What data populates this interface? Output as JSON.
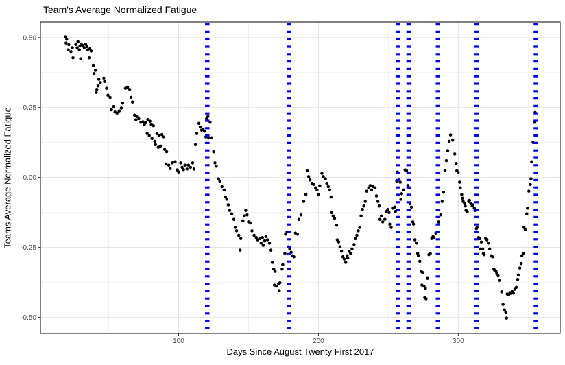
{
  "chart": {
    "title": "Team's Average Normalized Fatigue",
    "xlabel": "Days Since August Twenty First 2017",
    "ylabel": "Teams Average Normalized Fatigue"
  },
  "colors": {
    "point": "#000000",
    "vline": "#0000EE",
    "grid_major": "#E4E4E4",
    "grid_minor": "#F1F1F1",
    "panel_border": "#2F2F2F",
    "tick_text": "#4D4D4D",
    "background": "#FFFFFF"
  },
  "chart_data": {
    "type": "scatter",
    "title": "Team's Average Normalized Fatigue",
    "xlabel": "Days Since August Twenty First 2017",
    "ylabel": "Teams Average Normalized Fatigue",
    "xlim": [
      1.2,
      372.9
    ],
    "ylim": [
      -0.558,
      0.556
    ],
    "x_ticks": [
      100,
      200,
      300
    ],
    "x_tick_labels": [
      "100",
      "200",
      "300"
    ],
    "x_minor_ticks": [
      50,
      150,
      250,
      350
    ],
    "y_ticks": [
      0.5,
      0.25,
      0.0,
      -0.25,
      -0.5
    ],
    "y_tick_labels": [
      "0.50",
      "0.25",
      "0.00",
      "-0.25",
      "-0.50"
    ],
    "y_minor_ticks": [
      0.375,
      0.125,
      -0.125,
      -0.375
    ],
    "grid": true,
    "legend": false,
    "vline_days": [
      120.5,
      179,
      257,
      264.5,
      285.5,
      313,
      355.5
    ],
    "vline_style": "dotted",
    "points": [
      [
        19,
        0.503
      ],
      [
        19.5,
        0.481
      ],
      [
        20,
        0.494
      ],
      [
        21,
        0.456
      ],
      [
        21.5,
        0.475
      ],
      [
        23,
        0.45
      ],
      [
        24,
        0.464
      ],
      [
        24.5,
        0.428
      ],
      [
        26.5,
        0.476
      ],
      [
        27.5,
        0.464
      ],
      [
        28,
        0.485
      ],
      [
        29,
        0.456
      ],
      [
        29.5,
        0.47
      ],
      [
        30,
        0.424
      ],
      [
        30.5,
        0.476
      ],
      [
        31.5,
        0.472
      ],
      [
        32.5,
        0.464
      ],
      [
        33.5,
        0.476
      ],
      [
        34.5,
        0.468
      ],
      [
        35,
        0.456
      ],
      [
        36,
        0.428
      ],
      [
        36.5,
        0.46
      ],
      [
        37.5,
        0.452
      ],
      [
        39,
        0.4
      ],
      [
        39.5,
        0.371
      ],
      [
        40.5,
        0.383
      ],
      [
        41,
        0.304
      ],
      [
        41.5,
        0.315
      ],
      [
        42.5,
        0.327
      ],
      [
        43,
        0.351
      ],
      [
        44,
        0.339
      ],
      [
        46.5,
        0.355
      ],
      [
        47,
        0.343
      ],
      [
        48.5,
        0.319
      ],
      [
        49.5,
        0.294
      ],
      [
        51,
        0.286
      ],
      [
        52,
        0.242
      ],
      [
        53.5,
        0.254
      ],
      [
        54.5,
        0.234
      ],
      [
        56,
        0.23
      ],
      [
        57.5,
        0.238
      ],
      [
        59,
        0.248
      ],
      [
        60,
        0.266
      ],
      [
        62,
        0.319
      ],
      [
        63.5,
        0.323
      ],
      [
        65,
        0.315
      ],
      [
        66,
        0.286
      ],
      [
        67,
        0.27
      ],
      [
        68.5,
        0.223
      ],
      [
        69.5,
        0.206
      ],
      [
        70,
        0.218
      ],
      [
        71.5,
        0.21
      ],
      [
        73,
        0.197
      ],
      [
        74.5,
        0.199
      ],
      [
        75.5,
        0.189
      ],
      [
        76.5,
        0.196
      ],
      [
        77.5,
        0.157
      ],
      [
        78,
        0.207
      ],
      [
        79,
        0.149
      ],
      [
        79.5,
        0.201
      ],
      [
        80.5,
        0.189
      ],
      [
        81,
        0.139
      ],
      [
        82,
        0.185
      ],
      [
        83,
        0.129
      ],
      [
        83.5,
        0.117
      ],
      [
        84.5,
        0.157
      ],
      [
        85.5,
        0.108
      ],
      [
        86,
        0.149
      ],
      [
        87,
        0.112
      ],
      [
        88,
        0.153
      ],
      [
        89,
        0.145
      ],
      [
        90,
        0.1
      ],
      [
        91.5,
        0.092
      ],
      [
        91,
        0.048
      ],
      [
        93,
        0.044
      ],
      [
        94,
        0.032
      ],
      [
        95.5,
        0.052
      ],
      [
        97.5,
        0.056
      ],
      [
        99,
        0.027
      ],
      [
        100,
        0.019
      ],
      [
        101.5,
        0.052
      ],
      [
        102.5,
        0.036
      ],
      [
        103.5,
        0.028
      ],
      [
        104.5,
        0.044
      ],
      [
        106,
        0.03
      ],
      [
        107,
        0.044
      ],
      [
        108.5,
        0.036
      ],
      [
        110,
        0.052
      ],
      [
        111,
        0.03
      ],
      [
        112,
        0.117
      ],
      [
        113,
        0.157
      ],
      [
        114.5,
        0.193
      ],
      [
        115.5,
        0.18
      ],
      [
        116.5,
        0.169
      ],
      [
        117.5,
        0.173
      ],
      [
        118.5,
        0.165
      ],
      [
        119.5,
        0.145
      ],
      [
        120,
        0.21
      ],
      [
        121,
        0.218
      ],
      [
        121.5,
        0.141
      ],
      [
        122.5,
        0.197
      ],
      [
        123.5,
        0.142
      ],
      [
        125,
        0.092
      ],
      [
        126,
        0.052
      ],
      [
        127,
        0.04
      ],
      [
        128.5,
        -0.005
      ],
      [
        129.5,
        -0.013
      ],
      [
        131,
        -0.033
      ],
      [
        132.5,
        -0.045
      ],
      [
        133.5,
        -0.07
      ],
      [
        134.5,
        -0.078
      ],
      [
        135.5,
        -0.098
      ],
      [
        136.5,
        -0.118
      ],
      [
        138,
        -0.13
      ],
      [
        139.5,
        -0.15
      ],
      [
        140.5,
        -0.179
      ],
      [
        141.5,
        -0.191
      ],
      [
        143,
        -0.207
      ],
      [
        144,
        -0.26
      ],
      [
        144.5,
        -0.219
      ],
      [
        146,
        -0.155
      ],
      [
        147,
        -0.138
      ],
      [
        148,
        -0.118
      ],
      [
        149,
        -0.134
      ],
      [
        150,
        -0.159
      ],
      [
        151.5,
        -0.163
      ],
      [
        152.5,
        -0.191
      ],
      [
        154,
        -0.207
      ],
      [
        155.5,
        -0.215
      ],
      [
        156.5,
        -0.223
      ],
      [
        158,
        -0.219
      ],
      [
        159,
        -0.235
      ],
      [
        160,
        -0.215
      ],
      [
        160.5,
        -0.243
      ],
      [
        161.5,
        -0.227
      ],
      [
        162.5,
        -0.211
      ],
      [
        163.5,
        -0.223
      ],
      [
        165,
        -0.235
      ],
      [
        166,
        -0.26
      ],
      [
        167,
        -0.304
      ],
      [
        168,
        -0.328
      ],
      [
        168.5,
        -0.385
      ],
      [
        169,
        -0.336
      ],
      [
        170,
        -0.389
      ],
      [
        171.5,
        -0.381
      ],
      [
        172,
        -0.405
      ],
      [
        172.5,
        -0.377
      ],
      [
        174,
        -0.328
      ],
      [
        174.5,
        -0.312
      ],
      [
        176,
        -0.272
      ],
      [
        176.5,
        -0.203
      ],
      [
        177.5,
        -0.195
      ],
      [
        178.5,
        -0.248
      ],
      [
        179.5,
        -0.256
      ],
      [
        180.5,
        -0.268
      ],
      [
        181.5,
        -0.28
      ],
      [
        182.5,
        -0.284
      ],
      [
        183.5,
        -0.199
      ],
      [
        185,
        -0.203
      ],
      [
        186,
        -0.15
      ],
      [
        187.5,
        -0.134
      ],
      [
        189.5,
        -0.086
      ],
      [
        191,
        -0.061
      ],
      [
        192,
        0.024
      ],
      [
        193,
        0.003
      ],
      [
        194,
        -0.009
      ],
      [
        195.5,
        -0.021
      ],
      [
        196.5,
        -0.025
      ],
      [
        198,
        -0.037
      ],
      [
        199,
        -0.045
      ],
      [
        200,
        -0.061
      ],
      [
        201,
        -0.03
      ],
      [
        202.5,
        0.015
      ],
      [
        203.5,
        0.003
      ],
      [
        205,
        -0.005
      ],
      [
        206,
        -0.021
      ],
      [
        207,
        -0.033
      ],
      [
        208,
        -0.045
      ],
      [
        209,
        -0.07
      ],
      [
        209.5,
        -0.126
      ],
      [
        210.5,
        -0.138
      ],
      [
        211.5,
        -0.146
      ],
      [
        213,
        -0.171
      ],
      [
        213.5,
        -0.223
      ],
      [
        214.5,
        -0.231
      ],
      [
        215.5,
        -0.248
      ],
      [
        216.5,
        -0.264
      ],
      [
        217.5,
        -0.284
      ],
      [
        218.5,
        -0.292
      ],
      [
        219.5,
        -0.304
      ],
      [
        220.5,
        -0.28
      ],
      [
        221,
        -0.288
      ],
      [
        222,
        -0.264
      ],
      [
        223,
        -0.272
      ],
      [
        224,
        -0.256
      ],
      [
        225.5,
        -0.24
      ],
      [
        226.5,
        -0.219
      ],
      [
        227.5,
        -0.207
      ],
      [
        228.5,
        -0.191
      ],
      [
        229.5,
        -0.179
      ],
      [
        230.5,
        -0.138
      ],
      [
        231.5,
        -0.114
      ],
      [
        232.5,
        -0.102
      ],
      [
        233.5,
        -0.086
      ],
      [
        234.5,
        -0.049
      ],
      [
        236,
        -0.037
      ],
      [
        237,
        -0.029
      ],
      [
        238,
        -0.045
      ],
      [
        239,
        -0.033
      ],
      [
        240.5,
        -0.037
      ],
      [
        241.5,
        -0.066
      ],
      [
        242.5,
        -0.086
      ],
      [
        243.5,
        -0.102
      ],
      [
        244,
        -0.15
      ],
      [
        245,
        -0.138
      ],
      [
        246,
        -0.159
      ],
      [
        247.5,
        -0.15
      ],
      [
        248.5,
        -0.122
      ],
      [
        249.5,
        -0.114
      ],
      [
        250.5,
        -0.126
      ],
      [
        251,
        -0.167
      ],
      [
        252,
        -0.179
      ],
      [
        253,
        -0.11
      ],
      [
        254.5,
        -0.106
      ],
      [
        255,
        -0.122
      ],
      [
        256,
        -0.013
      ],
      [
        256.5,
        0.019
      ],
      [
        257.5,
        -0.009
      ],
      [
        258.5,
        -0.017
      ],
      [
        259,
        -0.078
      ],
      [
        259.5,
        -0.058
      ],
      [
        261,
        -0.045
      ],
      [
        262,
        0.027
      ],
      [
        263,
        0.024
      ],
      [
        264,
        -0.029
      ],
      [
        265,
        -0.037
      ],
      [
        265.5,
        -0.094
      ],
      [
        266.5,
        -0.106
      ],
      [
        267.5,
        -0.159
      ],
      [
        268,
        -0.167
      ],
      [
        269,
        -0.223
      ],
      [
        270,
        -0.235
      ],
      [
        271,
        -0.272
      ],
      [
        271.5,
        -0.28
      ],
      [
        272.5,
        -0.3
      ],
      [
        273.5,
        -0.336
      ],
      [
        274,
        -0.385
      ],
      [
        274.5,
        -0.34
      ],
      [
        275.5,
        -0.389
      ],
      [
        276,
        -0.43
      ],
      [
        276.5,
        -0.397
      ],
      [
        277,
        -0.434
      ],
      [
        278,
        -0.361
      ],
      [
        279,
        -0.276
      ],
      [
        280,
        -0.272
      ],
      [
        281,
        -0.219
      ],
      [
        282,
        -0.211
      ],
      [
        282.5,
        -0.215
      ],
      [
        284,
        -0.199
      ],
      [
        286,
        -0.159
      ],
      [
        287.5,
        -0.134
      ],
      [
        288.5,
        -0.086
      ],
      [
        289.5,
        -0.053
      ],
      [
        290.5,
        0.024
      ],
      [
        291.5,
        0.06
      ],
      [
        292.5,
        0.096
      ],
      [
        293.5,
        0.129
      ],
      [
        294.5,
        0.152
      ],
      [
        296,
        0.133
      ],
      [
        297.5,
        0.084
      ],
      [
        298.5,
        0.05
      ],
      [
        299,
        0.024
      ],
      [
        300,
        0.019
      ],
      [
        301,
        -0.017
      ],
      [
        301.5,
        -0.037
      ],
      [
        302.5,
        -0.061
      ],
      [
        303,
        -0.074
      ],
      [
        303.5,
        -0.086
      ],
      [
        304.5,
        -0.094
      ],
      [
        305,
        -0.102
      ],
      [
        305.5,
        -0.118
      ],
      [
        306.5,
        -0.122
      ],
      [
        307.5,
        -0.086
      ],
      [
        308,
        -0.082
      ],
      [
        309,
        -0.094
      ],
      [
        310,
        -0.102
      ],
      [
        310.5,
        -0.098
      ],
      [
        311.5,
        -0.11
      ],
      [
        312,
        -0.118
      ],
      [
        313,
        -0.183
      ],
      [
        313.5,
        -0.179
      ],
      [
        314.5,
        -0.215
      ],
      [
        315.5,
        -0.219
      ],
      [
        316,
        -0.256
      ],
      [
        316.5,
        -0.231
      ],
      [
        317.5,
        -0.256
      ],
      [
        318,
        -0.272
      ],
      [
        318.5,
        -0.276
      ],
      [
        319.5,
        -0.219
      ],
      [
        320.5,
        -0.223
      ],
      [
        321.5,
        -0.235
      ],
      [
        322.5,
        -0.256
      ],
      [
        323.5,
        -0.28
      ],
      [
        324.5,
        -0.284
      ],
      [
        325.5,
        -0.328
      ],
      [
        326,
        -0.332
      ],
      [
        327,
        -0.336
      ],
      [
        327.5,
        -0.344
      ],
      [
        328.5,
        -0.352
      ],
      [
        329.5,
        -0.368
      ],
      [
        331,
        -0.409
      ],
      [
        332,
        -0.454
      ],
      [
        333,
        -0.474
      ],
      [
        334,
        -0.482
      ],
      [
        334.5,
        -0.503
      ],
      [
        335,
        -0.417
      ],
      [
        336,
        -0.42
      ],
      [
        337,
        -0.412
      ],
      [
        337.5,
        -0.415
      ],
      [
        338.5,
        -0.408
      ],
      [
        339.5,
        -0.414
      ],
      [
        340.5,
        -0.4
      ],
      [
        341.5,
        -0.393
      ],
      [
        342.5,
        -0.365
      ],
      [
        343,
        -0.349
      ],
      [
        344,
        -0.324
      ],
      [
        345,
        -0.308
      ],
      [
        345.5,
        -0.28
      ],
      [
        346.5,
        -0.272
      ],
      [
        347,
        -0.179
      ],
      [
        348,
        -0.187
      ],
      [
        349,
        -0.13
      ],
      [
        349.5,
        -0.11
      ],
      [
        350.5,
        -0.049
      ],
      [
        351.5,
        -0.025
      ],
      [
        352,
        -0.005
      ],
      [
        352.5,
        0.056
      ],
      [
        353.5,
        0.125
      ],
      [
        354.5,
        0.197
      ],
      [
        355,
        0.232
      ]
    ]
  }
}
